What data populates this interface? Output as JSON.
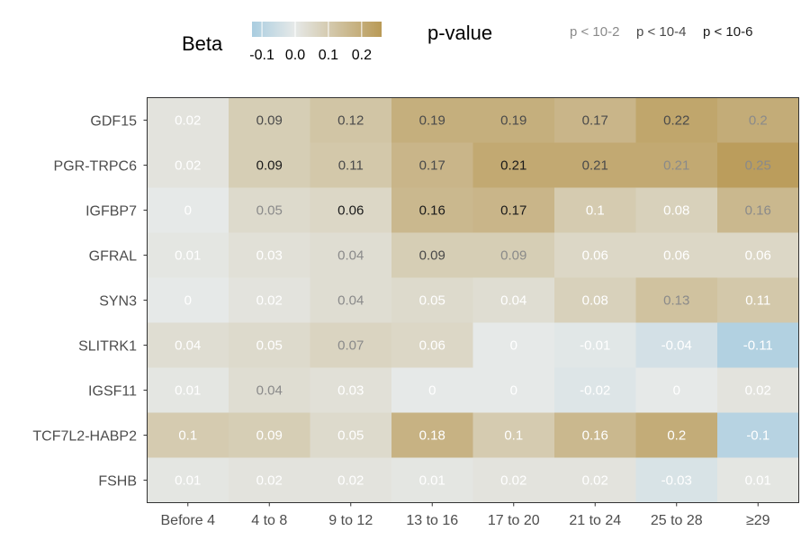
{
  "legend": {
    "beta_title": "Beta",
    "beta_ticks": [
      "-0.1",
      "0.0",
      "0.1",
      "0.2"
    ],
    "beta_tick_values": [
      -0.1,
      0.0,
      0.1,
      0.2
    ],
    "beta_range": [
      -0.13,
      0.26
    ],
    "pvalue_title": "p-value",
    "pvalue_levels": [
      "p < 10-2",
      "p < 10-4",
      "p < 10-6"
    ],
    "pvalue_colors": [
      "#8a8a8a",
      "#4a4a4a",
      "#1a1a1a"
    ]
  },
  "colors": {
    "negative": "#a9cde0",
    "neutral": "#e6e9e8",
    "positive": "#b99a56",
    "panel_border": "#333333"
  },
  "chart_data": {
    "type": "heatmap",
    "x_categories": [
      "Before 4",
      "4 to 8",
      "9 to 12",
      "13 to 16",
      "17 to 20",
      "21 to 24",
      "25 to 28",
      "≥29"
    ],
    "y_categories": [
      "GDF15",
      "PGR-TRPC6",
      "IGFBP7",
      "GFRAL",
      "SYN3",
      "SLITRK1",
      "IGSF11",
      "TCF7L2-HABP2",
      "FSHB"
    ],
    "values": [
      [
        0.02,
        0.09,
        0.12,
        0.19,
        0.19,
        0.17,
        0.22,
        0.2
      ],
      [
        0.02,
        0.09,
        0.11,
        0.17,
        0.21,
        0.21,
        0.21,
        0.25
      ],
      [
        0,
        0.05,
        0.06,
        0.16,
        0.17,
        0.1,
        0.08,
        0.16
      ],
      [
        0.01,
        0.03,
        0.04,
        0.09,
        0.09,
        0.06,
        0.06,
        0.06
      ],
      [
        0,
        0.02,
        0.04,
        0.05,
        0.04,
        0.08,
        0.13,
        0.11
      ],
      [
        0.04,
        0.05,
        0.07,
        0.06,
        0,
        -0.01,
        -0.04,
        -0.11
      ],
      [
        0.01,
        0.04,
        0.03,
        0,
        0,
        -0.02,
        0,
        0.02
      ],
      [
        0.1,
        0.09,
        0.05,
        0.18,
        0.1,
        0.16,
        0.2,
        -0.1
      ],
      [
        0.01,
        0.02,
        0.02,
        0.01,
        0.02,
        0.02,
        -0.03,
        0.01
      ]
    ],
    "labels": [
      [
        "0.02",
        "0.09",
        "0.12",
        "0.19",
        "0.19",
        "0.17",
        "0.22",
        "0.2"
      ],
      [
        "0.02",
        "0.09",
        "0.11",
        "0.17",
        "0.21",
        "0.21",
        "0.21",
        "0.25"
      ],
      [
        "0",
        "0.05",
        "0.06",
        "0.16",
        "0.17",
        "0.1",
        "0.08",
        "0.16"
      ],
      [
        "0.01",
        "0.03",
        "0.04",
        "0.09",
        "0.09",
        "0.06",
        "0.06",
        "0.06"
      ],
      [
        "0",
        "0.02",
        "0.04",
        "0.05",
        "0.04",
        "0.08",
        "0.13",
        "0.11"
      ],
      [
        "0.04",
        "0.05",
        "0.07",
        "0.06",
        "0",
        "-0.01",
        "-0.04",
        "-0.11"
      ],
      [
        "0.01",
        "0.04",
        "0.03",
        "0",
        "0",
        "-0.02",
        "0",
        "0.02"
      ],
      [
        "0.1",
        "0.09",
        "0.05",
        "0.18",
        "0.1",
        "0.16",
        "0.2",
        "-0.1"
      ],
      [
        "0.01",
        "0.02",
        "0.02",
        "0.01",
        "0.02",
        "0.02",
        "-0.03",
        "0.01"
      ]
    ],
    "pvalue_level": [
      [
        "none",
        "p4",
        "p4",
        "p4",
        "p4",
        "p4",
        "p4",
        "p2"
      ],
      [
        "none",
        "p6",
        "p4",
        "p4",
        "p6",
        "p4",
        "p2",
        "p2"
      ],
      [
        "none",
        "p2",
        "p6",
        "p6",
        "p6",
        "none",
        "none",
        "p2"
      ],
      [
        "none",
        "none",
        "p2",
        "p4",
        "p2",
        "none",
        "none",
        "none"
      ],
      [
        "none",
        "none",
        "p2",
        "none",
        "none",
        "none",
        "p2",
        "none"
      ],
      [
        "none",
        "none",
        "p2",
        "none",
        "none",
        "none",
        "none",
        "none"
      ],
      [
        "none",
        "p2",
        "none",
        "none",
        "none",
        "none",
        "none",
        "none"
      ],
      [
        "none",
        "none",
        "none",
        "none",
        "none",
        "none",
        "none",
        "none"
      ],
      [
        "none",
        "none",
        "none",
        "none",
        "none",
        "none",
        "none",
        "none"
      ]
    ],
    "value_range": [
      -0.13,
      0.26
    ],
    "legend_placement": "top"
  }
}
